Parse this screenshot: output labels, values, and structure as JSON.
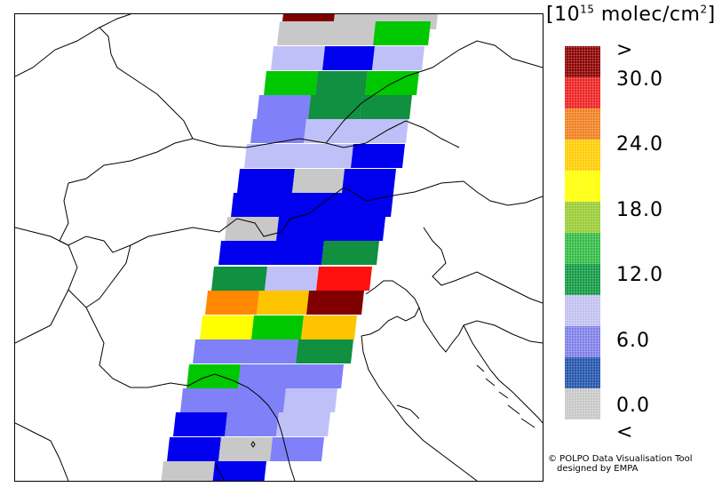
{
  "legend": {
    "unit_base": "[10",
    "unit_exp": "15",
    "unit_rest": " molec/cm",
    "unit_sq": "2",
    "unit_close": "]",
    "colors": [
      "#8b0000",
      "#ee2222",
      "#f08020",
      "#ffcc00",
      "#ffff00",
      "#99cc33",
      "#33bb44",
      "#119944",
      "#c0c0f0",
      "#7f7fe8",
      "#2255aa",
      "#c8c8c8"
    ],
    "labels": [
      ">",
      "30.0",
      "24.0",
      "18.0",
      "12.0",
      "6.0",
      "0.0",
      "<"
    ]
  },
  "credit": {
    "line1": "© POLPO Data Visualisation Tool",
    "line2": "designed by EMPA"
  },
  "swath_colors": {
    "dark_red": "#800000",
    "red": "#ff1010",
    "orange": "#ff8800",
    "yellow_orange": "#ffc400",
    "yellow": "#ffff00",
    "green": "#00c800",
    "dark_green": "#109040",
    "lavender": "#c0c0f8",
    "periwinkle": "#8080f8",
    "blue": "#0000ee",
    "gray": "#c8c8c8"
  }
}
